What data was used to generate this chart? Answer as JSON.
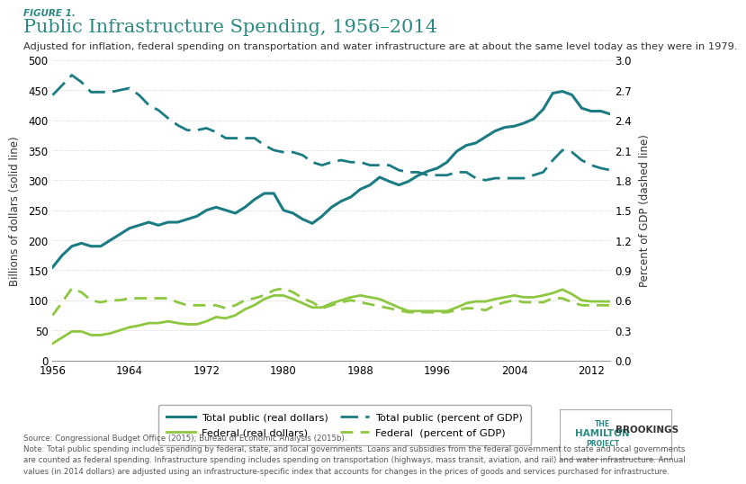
{
  "title": "Public Infrastructure Spending, 1956–2014",
  "figure_label": "FIGURE 1.",
  "subtitle": "Adjusted for inflation, federal spending on transportation and water infrastructure are at about the same level today as they were in 1979.",
  "ylabel_left": "Billions of dollars (solid line)",
  "ylabel_right": "Percent of GDP (dashed line)",
  "ylim_left": [
    0,
    500
  ],
  "ylim_right": [
    0,
    3.0
  ],
  "yticks_left": [
    0,
    50,
    100,
    150,
    200,
    250,
    300,
    350,
    400,
    450,
    500
  ],
  "yticks_right": [
    0,
    0.3,
    0.6,
    0.9,
    1.2,
    1.5,
    1.8,
    2.1,
    2.4,
    2.7,
    3.0
  ],
  "xticks": [
    1956,
    1964,
    1972,
    1980,
    1988,
    1996,
    2004,
    2012
  ],
  "color_total": "#1a7b82",
  "color_federal": "#8dc63f",
  "source_text": "Source: Congressional Budget Office (2015); Bureau of Economic Analysis (2015b).\nNote: Total public spending includes spending by federal, state, and local governments. Loans and subsidies from the federal government to state and local governments\nare counted as federal spending. Infrastructure spending includes spending on transportation (highways, mass transit, aviation, and rail) and water infrastructure. Annual\nvalues (in 2014 dollars) are adjusted using an infrastructure-specific index that accounts for changes in the prices of goods and services purchased for infrastructure.",
  "years": [
    1956,
    1957,
    1958,
    1959,
    1960,
    1961,
    1962,
    1963,
    1964,
    1965,
    1966,
    1967,
    1968,
    1969,
    1970,
    1971,
    1972,
    1973,
    1974,
    1975,
    1976,
    1977,
    1978,
    1979,
    1980,
    1981,
    1982,
    1983,
    1984,
    1985,
    1986,
    1987,
    1988,
    1989,
    1990,
    1991,
    1992,
    1993,
    1994,
    1995,
    1996,
    1997,
    1998,
    1999,
    2000,
    2001,
    2002,
    2003,
    2004,
    2005,
    2006,
    2007,
    2008,
    2009,
    2010,
    2011,
    2012,
    2013,
    2014
  ],
  "total_public_real": [
    155,
    175,
    190,
    195,
    190,
    190,
    200,
    210,
    220,
    225,
    230,
    225,
    230,
    230,
    235,
    240,
    250,
    255,
    250,
    245,
    255,
    268,
    278,
    278,
    250,
    245,
    235,
    228,
    240,
    255,
    265,
    272,
    285,
    292,
    305,
    298,
    292,
    298,
    308,
    315,
    320,
    330,
    348,
    358,
    362,
    372,
    382,
    388,
    390,
    395,
    402,
    418,
    445,
    448,
    442,
    420,
    415,
    415,
    410
  ],
  "total_public_pct_gdp": [
    2.65,
    2.75,
    2.85,
    2.78,
    2.68,
    2.68,
    2.68,
    2.7,
    2.72,
    2.65,
    2.55,
    2.5,
    2.42,
    2.35,
    2.3,
    2.3,
    2.32,
    2.28,
    2.22,
    2.22,
    2.22,
    2.22,
    2.15,
    2.1,
    2.08,
    2.08,
    2.05,
    1.98,
    1.95,
    1.98,
    2.0,
    1.98,
    1.98,
    1.95,
    1.95,
    1.95,
    1.9,
    1.88,
    1.88,
    1.85,
    1.85,
    1.85,
    1.88,
    1.88,
    1.82,
    1.8,
    1.82,
    1.82,
    1.82,
    1.82,
    1.85,
    1.88,
    2.0,
    2.1,
    2.08,
    2.0,
    1.95,
    1.92,
    1.9
  ],
  "federal_real": [
    28,
    38,
    48,
    48,
    42,
    42,
    45,
    50,
    55,
    58,
    62,
    62,
    65,
    62,
    60,
    60,
    65,
    72,
    70,
    75,
    85,
    92,
    102,
    108,
    108,
    102,
    95,
    88,
    88,
    95,
    100,
    105,
    108,
    105,
    102,
    95,
    88,
    82,
    82,
    82,
    82,
    82,
    88,
    95,
    98,
    98,
    102,
    105,
    108,
    105,
    105,
    108,
    112,
    118,
    110,
    100,
    98,
    98,
    98
  ],
  "federal_pct_gdp": [
    0.45,
    0.58,
    0.72,
    0.68,
    0.6,
    0.58,
    0.6,
    0.6,
    0.62,
    0.62,
    0.62,
    0.62,
    0.62,
    0.58,
    0.55,
    0.55,
    0.55,
    0.55,
    0.52,
    0.55,
    0.6,
    0.62,
    0.65,
    0.7,
    0.72,
    0.68,
    0.62,
    0.58,
    0.52,
    0.55,
    0.58,
    0.6,
    0.58,
    0.56,
    0.54,
    0.52,
    0.5,
    0.48,
    0.48,
    0.48,
    0.48,
    0.48,
    0.5,
    0.52,
    0.52,
    0.5,
    0.55,
    0.58,
    0.6,
    0.58,
    0.58,
    0.58,
    0.62,
    0.62,
    0.58,
    0.55,
    0.55,
    0.55,
    0.55
  ],
  "background_color": "#ffffff"
}
